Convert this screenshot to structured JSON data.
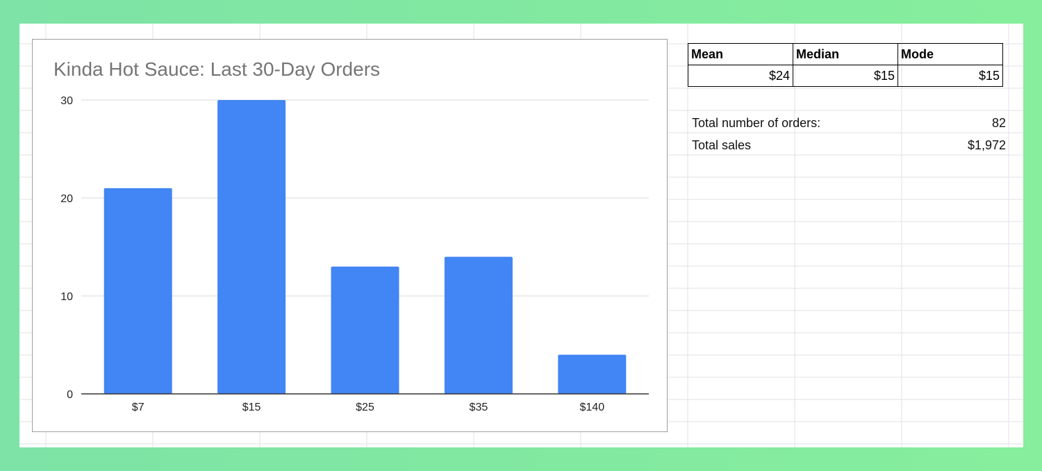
{
  "chart_data": {
    "type": "bar",
    "title": "Kinda Hot Sauce: Last 30-Day Orders",
    "categories": [
      "$7",
      "$15",
      "$25",
      "$35",
      "$140"
    ],
    "values": [
      21,
      30,
      13,
      14,
      4
    ],
    "ylim": [
      0,
      30
    ],
    "yticks": [
      0,
      10,
      20,
      30
    ],
    "xlabel": "",
    "ylabel": "",
    "grid": true,
    "legend": "none",
    "bar_color": "#4285f4"
  },
  "stats": {
    "headers": [
      "Mean",
      "Median",
      "Mode"
    ],
    "values": [
      "$24",
      "$15",
      "$15"
    ]
  },
  "totals": {
    "orders_label": "Total number of orders:",
    "orders_value": "82",
    "sales_label": "Total sales",
    "sales_value": "$1,972"
  }
}
